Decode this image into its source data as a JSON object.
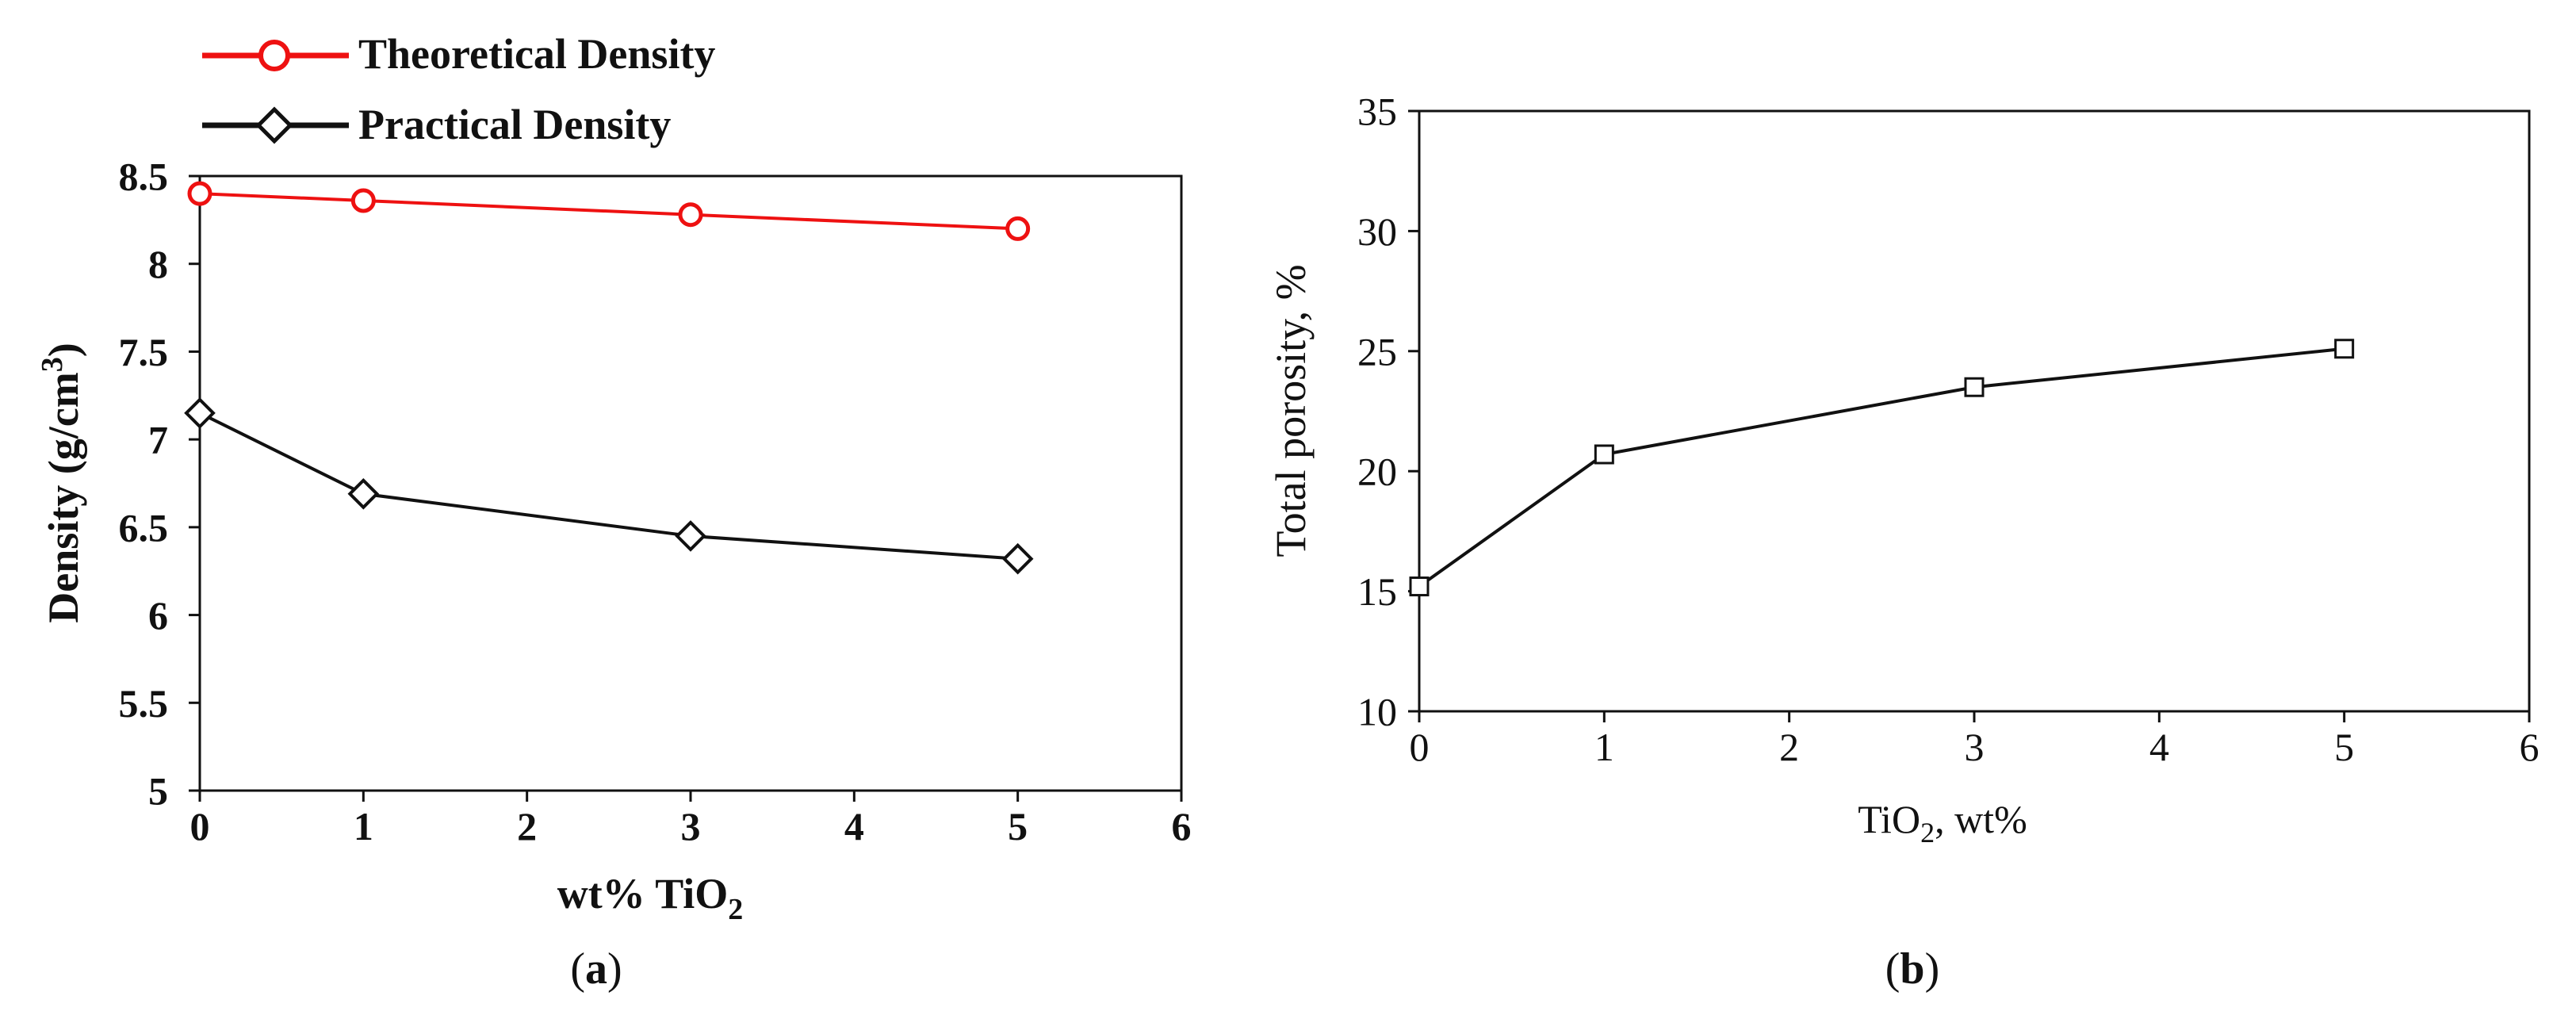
{
  "chart_data": [
    {
      "type": "line",
      "panel_label": "a",
      "xlabel": "wt% TiO",
      "xlabel_subscript": "2",
      "ylabel": "Density (g/cm",
      "ylabel_superscript": "3",
      "ylabel_close": ")",
      "xlim": [
        0,
        6
      ],
      "ylim": [
        5,
        8.5
      ],
      "x_ticks": [
        "0",
        "1",
        "2",
        "3",
        "4",
        "5",
        "6"
      ],
      "y_ticks": [
        "5",
        "5.5",
        "6",
        "6.5",
        "7",
        "7.5",
        "8",
        "8.5"
      ],
      "grid": false,
      "legend_position": "top-left, above plot",
      "series": [
        {
          "name": "Theoretical Density",
          "color": "#ee1111",
          "marker": "circle",
          "x": [
            0,
            1,
            3,
            5
          ],
          "y": [
            8.4,
            8.36,
            8.28,
            8.2
          ]
        },
        {
          "name": "Practical Density",
          "color": "#111111",
          "marker": "diamond",
          "x": [
            0,
            1,
            3,
            5
          ],
          "y": [
            7.15,
            6.69,
            6.45,
            6.32
          ]
        }
      ]
    },
    {
      "type": "line",
      "panel_label": "b",
      "xlabel": "TiO",
      "xlabel_subscript": "2",
      "xlabel_suffix": ", wt%",
      "ylabel": "Total porosity, %",
      "xlim": [
        0,
        6
      ],
      "ylim": [
        10,
        35
      ],
      "x_ticks": [
        "0",
        "1",
        "2",
        "3",
        "4",
        "5",
        "6"
      ],
      "y_ticks": [
        "10",
        "15",
        "20",
        "25",
        "30",
        "35"
      ],
      "grid": false,
      "series": [
        {
          "color": "#111111",
          "marker": "square",
          "x": [
            0,
            1,
            3,
            5
          ],
          "y": [
            15.2,
            20.7,
            23.5,
            25.1
          ]
        }
      ]
    }
  ]
}
